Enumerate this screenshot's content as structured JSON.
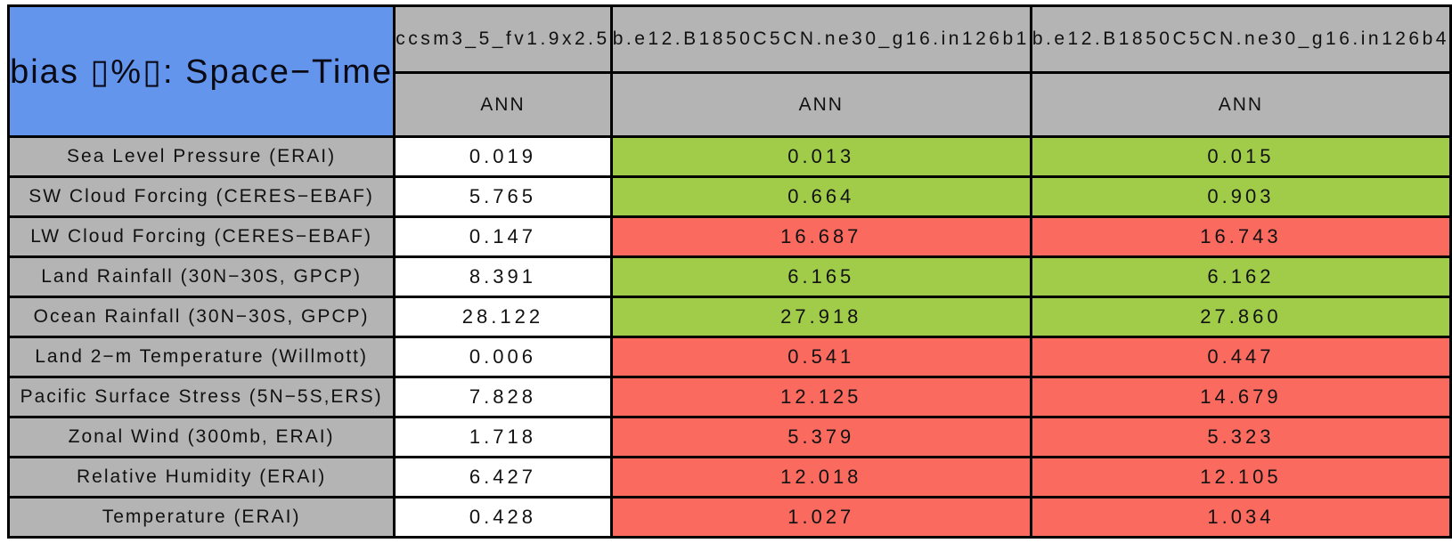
{
  "table_title": "bias ▯%▯: Space−Time",
  "columns": [
    {
      "model": "ccsm3_5_fv1.9x2.5",
      "season": "ANN"
    },
    {
      "model": "b.e12.B1850C5CN.ne30_g16.in126b1",
      "season": "ANN"
    },
    {
      "model": "b.e12.B1850C5CN.ne30_g16.in126b4",
      "season": "ANN"
    }
  ],
  "rows": [
    {
      "label": "Sea Level Pressure (ERAI)",
      "cells": [
        {
          "value": "0.019",
          "status": "neutral"
        },
        {
          "value": "0.013",
          "status": "good"
        },
        {
          "value": "0.015",
          "status": "good"
        }
      ]
    },
    {
      "label": "SW Cloud Forcing (CERES−EBAF)",
      "cells": [
        {
          "value": "5.765",
          "status": "neutral"
        },
        {
          "value": "0.664",
          "status": "good"
        },
        {
          "value": "0.903",
          "status": "good"
        }
      ]
    },
    {
      "label": "LW Cloud Forcing (CERES−EBAF)",
      "cells": [
        {
          "value": "0.147",
          "status": "neutral"
        },
        {
          "value": "16.687",
          "status": "bad"
        },
        {
          "value": "16.743",
          "status": "bad"
        }
      ]
    },
    {
      "label": "Land Rainfall (30N−30S, GPCP)",
      "cells": [
        {
          "value": "8.391",
          "status": "neutral"
        },
        {
          "value": "6.165",
          "status": "good"
        },
        {
          "value": "6.162",
          "status": "good"
        }
      ]
    },
    {
      "label": "Ocean Rainfall (30N−30S, GPCP)",
      "cells": [
        {
          "value": "28.122",
          "status": "neutral"
        },
        {
          "value": "27.918",
          "status": "good"
        },
        {
          "value": "27.860",
          "status": "good"
        }
      ]
    },
    {
      "label": "Land 2−m Temperature (Willmott)",
      "cells": [
        {
          "value": "0.006",
          "status": "neutral"
        },
        {
          "value": "0.541",
          "status": "bad"
        },
        {
          "value": "0.447",
          "status": "bad"
        }
      ]
    },
    {
      "label": "Pacific Surface Stress (5N−5S,ERS)",
      "cells": [
        {
          "value": "7.828",
          "status": "neutral"
        },
        {
          "value": "12.125",
          "status": "bad"
        },
        {
          "value": "14.679",
          "status": "bad"
        }
      ]
    },
    {
      "label": "Zonal Wind (300mb, ERAI)",
      "cells": [
        {
          "value": "1.718",
          "status": "neutral"
        },
        {
          "value": "5.379",
          "status": "bad"
        },
        {
          "value": "5.323",
          "status": "bad"
        }
      ]
    },
    {
      "label": "Relative Humidity (ERAI)",
      "cells": [
        {
          "value": "6.427",
          "status": "neutral"
        },
        {
          "value": "12.018",
          "status": "bad"
        },
        {
          "value": "12.105",
          "status": "bad"
        }
      ]
    },
    {
      "label": "Temperature (ERAI)",
      "cells": [
        {
          "value": "0.428",
          "status": "neutral"
        },
        {
          "value": "1.027",
          "status": "bad"
        },
        {
          "value": "1.034",
          "status": "bad"
        }
      ]
    }
  ],
  "colors": {
    "title_bg": "#6495ED",
    "header_bg": "#b4b4b4",
    "good_bg": "#a0cc4a",
    "bad_bg": "#fa6a5f",
    "neutral_bg": "#ffffff",
    "border": "#000000"
  },
  "chart_data": {
    "type": "table",
    "title": "bias ▯%▯: Space−Time",
    "season": "ANN",
    "row_labels": [
      "Sea Level Pressure (ERAI)",
      "SW Cloud Forcing (CERES−EBAF)",
      "LW Cloud Forcing (CERES−EBAF)",
      "Land Rainfall (30N−30S, GPCP)",
      "Ocean Rainfall (30N−30S, GPCP)",
      "Land 2−m Temperature (Willmott)",
      "Pacific Surface Stress (5N−5S,ERS)",
      "Zonal Wind (300mb, ERAI)",
      "Relative Humidity (ERAI)",
      "Temperature (ERAI)"
    ],
    "series": [
      {
        "name": "ccsm3_5_fv1.9x2.5",
        "values": [
          0.019,
          5.765,
          0.147,
          8.391,
          28.122,
          0.006,
          7.828,
          1.718,
          6.427,
          0.428
        ],
        "cell_status": [
          "neutral",
          "neutral",
          "neutral",
          "neutral",
          "neutral",
          "neutral",
          "neutral",
          "neutral",
          "neutral",
          "neutral"
        ]
      },
      {
        "name": "b.e12.B1850C5CN.ne30_g16.in126b1",
        "values": [
          0.013,
          0.664,
          16.687,
          6.165,
          27.918,
          0.541,
          12.125,
          5.379,
          12.018,
          1.027
        ],
        "cell_status": [
          "good",
          "good",
          "bad",
          "good",
          "good",
          "bad",
          "bad",
          "bad",
          "bad",
          "bad"
        ]
      },
      {
        "name": "b.e12.B1850C5CN.ne30_g16.in126b4",
        "values": [
          0.015,
          0.903,
          16.743,
          6.162,
          27.86,
          0.447,
          14.679,
          5.323,
          12.105,
          1.034
        ],
        "cell_status": [
          "good",
          "good",
          "bad",
          "good",
          "good",
          "bad",
          "bad",
          "bad",
          "bad",
          "bad"
        ]
      }
    ],
    "layout_hints": {
      "grid": true,
      "header_rows": 2,
      "first_column_is_row_labels": true
    }
  }
}
